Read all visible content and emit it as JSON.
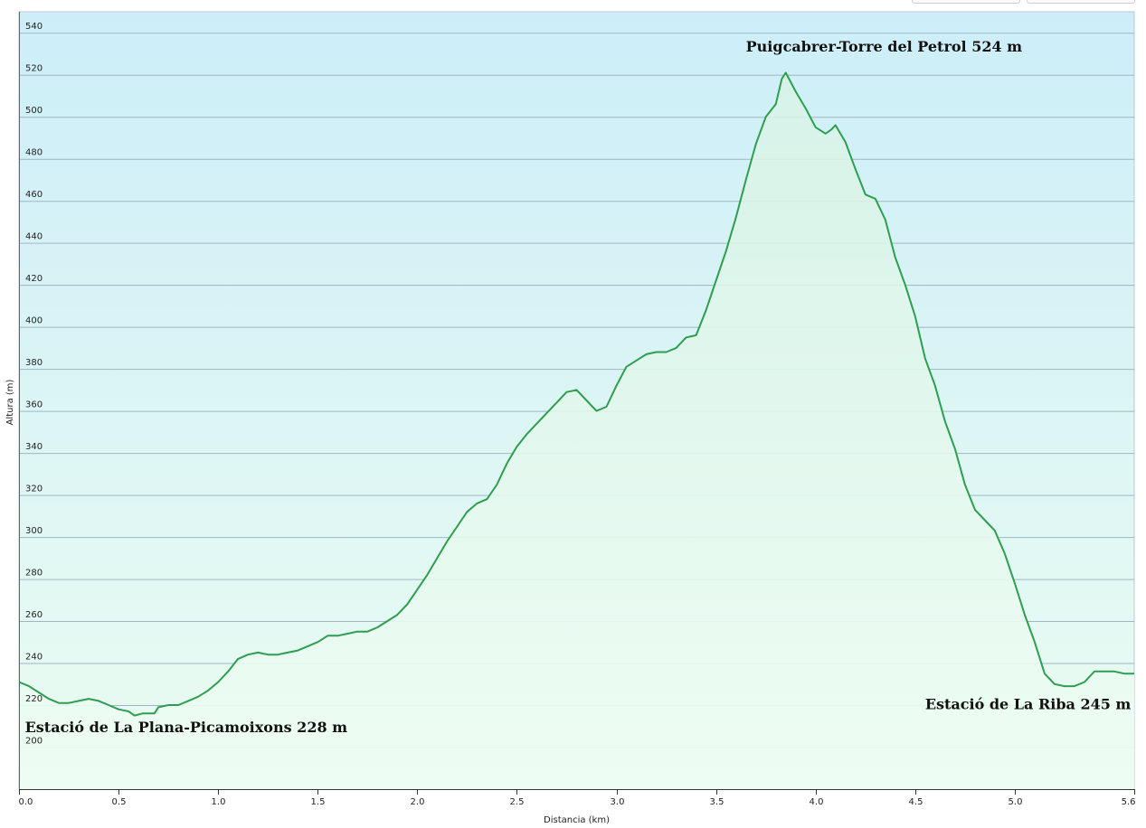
{
  "chart_data": {
    "type": "area",
    "xlabel": "Distancia  (km)",
    "ylabel": "Altura (m)",
    "xlim": [
      0,
      5.6
    ],
    "ylim": [
      180,
      550
    ],
    "x_ticks": [
      "0.0",
      "0.5",
      "1.0",
      "1.5",
      "2.0",
      "2.5",
      "3.0",
      "3.5",
      "4.0",
      "4.5",
      "5.0",
      "5.6"
    ],
    "y_ticks": [
      "200",
      "220",
      "240",
      "260",
      "280",
      "300",
      "320",
      "340",
      "360",
      "380",
      "400",
      "420",
      "440",
      "460",
      "480",
      "500",
      "520",
      "540"
    ],
    "grid": true,
    "line_color": "#2e9e4f",
    "fill_color": "#dff5ea",
    "background_top": "#cdeef9",
    "background_bottom": "#eafcf1",
    "series": [
      {
        "x": [
          0,
          0.05,
          0.1,
          0.15,
          0.2,
          0.25,
          0.3,
          0.35,
          0.4,
          0.45,
          0.5,
          0.55,
          0.58,
          0.62,
          0.68,
          0.7,
          0.75,
          0.8,
          0.85,
          0.9,
          0.95,
          1.0,
          1.05,
          1.1,
          1.15,
          1.2,
          1.25,
          1.3,
          1.35,
          1.4,
          1.45,
          1.5,
          1.55,
          1.6,
          1.65,
          1.7,
          1.75,
          1.8,
          1.85,
          1.9,
          1.95,
          2.0,
          2.05,
          2.1,
          2.15,
          2.2,
          2.25,
          2.3,
          2.35,
          2.4,
          2.45,
          2.5,
          2.55,
          2.6,
          2.65,
          2.7,
          2.75,
          2.8,
          2.85,
          2.9,
          2.95,
          3.0,
          3.05,
          3.1,
          3.15,
          3.2,
          3.25,
          3.3,
          3.35,
          3.4,
          3.45,
          3.5,
          3.55,
          3.6,
          3.65,
          3.7,
          3.75,
          3.8,
          3.83,
          3.85,
          3.9,
          3.95,
          4.0,
          4.05,
          4.08,
          4.1,
          4.15,
          4.2,
          4.25,
          4.3,
          4.35,
          4.4,
          4.45,
          4.5,
          4.55,
          4.6,
          4.65,
          4.7,
          4.75,
          4.8,
          4.85,
          4.9,
          4.95,
          5.0,
          5.05,
          5.1,
          5.15,
          5.2,
          5.25,
          5.3,
          5.35,
          5.4,
          5.45,
          5.5,
          5.55,
          5.6
        ],
        "values": [
          231,
          229,
          226,
          223,
          221,
          221,
          222,
          223,
          222,
          220,
          218,
          217,
          215,
          216,
          216,
          219,
          220,
          220,
          222,
          224,
          227,
          231,
          236,
          242,
          244,
          245,
          244,
          244,
          245,
          246,
          248,
          250,
          253,
          253,
          254,
          255,
          255,
          257,
          260,
          263,
          268,
          275,
          282,
          290,
          298,
          305,
          312,
          316,
          318,
          325,
          335,
          343,
          349,
          354,
          359,
          364,
          369,
          370,
          365,
          360,
          362,
          372,
          381,
          384,
          387,
          388,
          388,
          390,
          395,
          396,
          408,
          422,
          436,
          452,
          470,
          487,
          500,
          506,
          518,
          521,
          512,
          504,
          495,
          492,
          494,
          496,
          488,
          475,
          463,
          461,
          451,
          433,
          420,
          405,
          385,
          372,
          355,
          342,
          325,
          313,
          308,
          303,
          292,
          278,
          263,
          250,
          235,
          230,
          229,
          229,
          231,
          236,
          236,
          236,
          235,
          235
        ]
      }
    ],
    "annotations": [
      {
        "text": "Puigcabrer-Torre del Petrol 524 m",
        "x": 3.65,
        "y": 531
      },
      {
        "text": "Estació de La Plana-Picamoixons 228 m",
        "x": 0.03,
        "y": 207
      },
      {
        "text": "Estació de La Riba 245 m",
        "x": 4.55,
        "y": 218
      }
    ]
  }
}
